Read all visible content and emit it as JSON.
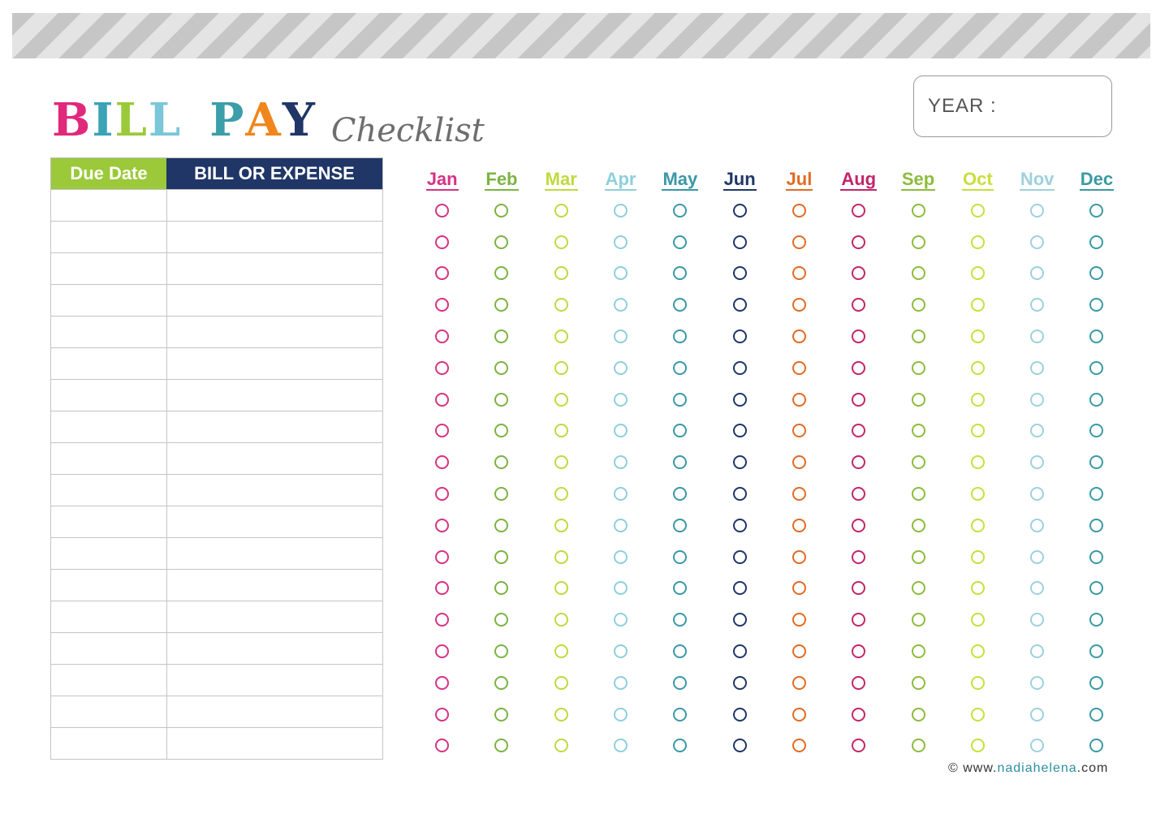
{
  "header": {
    "title_word1": "BILL",
    "title_word2": "PAY",
    "title_sub": "Checklist",
    "year_label": "YEAR :"
  },
  "title_colors": {
    "word1": [
      "#e0297a",
      "#3ba3b6",
      "#9bc93a",
      "#7bc6d9"
    ],
    "word2": [
      "#3b9ea8",
      "#f0861c",
      "#1f3666"
    ]
  },
  "table": {
    "headers": {
      "due_date": "Due Date",
      "bill_expense": "BILL OR EXPENSE"
    },
    "header_colors": {
      "due_date": "#9bc93a",
      "bill_expense": "#1f3666"
    },
    "row_count": 18
  },
  "months": [
    {
      "label": "Jan",
      "color": "#d63384"
    },
    {
      "label": "Feb",
      "color": "#7cb342"
    },
    {
      "label": "Mar",
      "color": "#c0d93f"
    },
    {
      "label": "Apr",
      "color": "#8ecfdc"
    },
    {
      "label": "May",
      "color": "#3a98a6"
    },
    {
      "label": "Jun",
      "color": "#1f3666"
    },
    {
      "label": "Jul",
      "color": "#e26a24"
    },
    {
      "label": "Aug",
      "color": "#c2256b"
    },
    {
      "label": "Sep",
      "color": "#8cbc3c"
    },
    {
      "label": "Oct",
      "color": "#c7df3c"
    },
    {
      "label": "Nov",
      "color": "#9ed1dc"
    },
    {
      "label": "Dec",
      "color": "#3a9aa2"
    }
  ],
  "footer": {
    "copyright_prefix": "© www.",
    "copyright_mid": "nadiahelena",
    "copyright_suffix": ".com"
  }
}
